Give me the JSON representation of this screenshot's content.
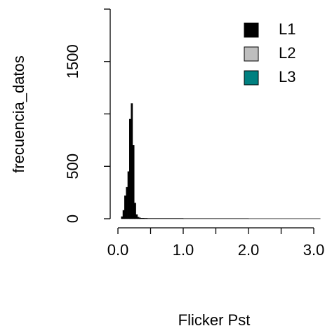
{
  "chart_data": {
    "type": "histogram",
    "xlabel": "Flicker Pst",
    "ylabel": "frecuencia_datos",
    "bins": [
      0.05,
      0.075,
      0.1,
      0.125,
      0.15,
      0.175,
      0.2,
      0.225,
      0.25,
      0.275,
      0.3,
      0.325,
      0.35,
      0.4,
      0.45,
      1,
      2,
      3.1
    ],
    "series": [
      {
        "name": "L1",
        "color": "#000000",
        "values": [
          20,
          80,
          220,
          300,
          450,
          950,
          1100,
          700,
          150,
          40,
          15,
          8,
          5,
          4,
          3,
          2,
          1
        ]
      },
      {
        "name": "L2",
        "color": "#bebebe"
      },
      {
        "name": "L3",
        "color": "#008080"
      }
    ],
    "xlim": [
      0,
      3
    ],
    "xticks": [
      {
        "value": 0,
        "label": "0.0"
      },
      {
        "value": 0.5,
        "label": null
      },
      {
        "value": 1,
        "label": "1.0"
      },
      {
        "value": 1.5,
        "label": null
      },
      {
        "value": 2,
        "label": "2.0"
      },
      {
        "value": 2.5,
        "label": null
      },
      {
        "value": 3,
        "label": "3.0"
      }
    ],
    "ylim": [
      0,
      2000
    ],
    "yticks": [
      0,
      500,
      {
        "value": 1000,
        "label": null
      },
      1500,
      {
        "value": 2000,
        "label": null
      }
    ],
    "legend": "topright"
  }
}
